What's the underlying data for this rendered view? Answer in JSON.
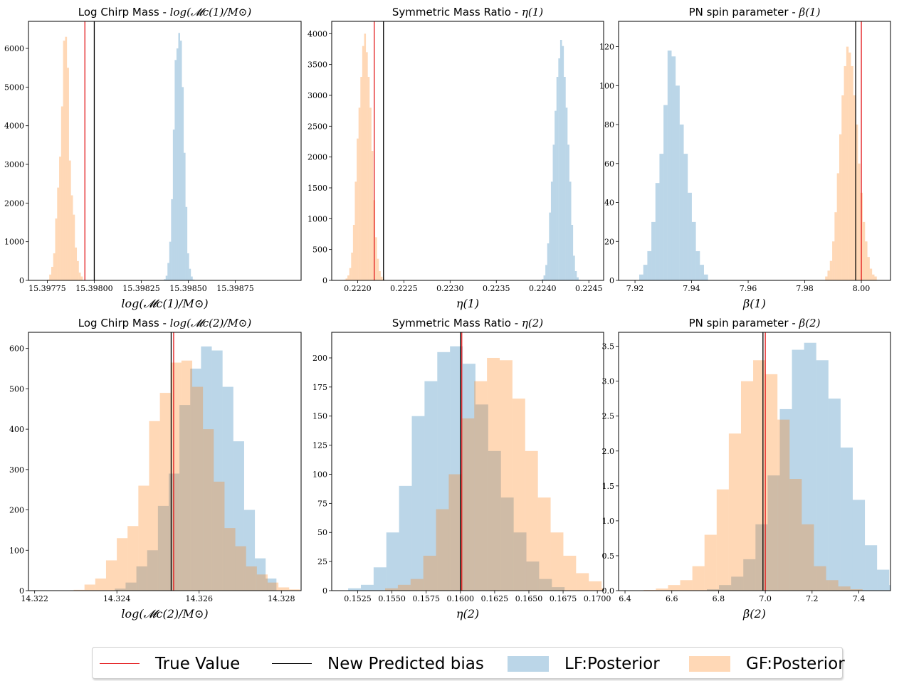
{
  "colors": {
    "true_value": "#e31a1c",
    "predicted_bias": "#000000",
    "lf_posterior": "#1f77b4",
    "gf_posterior": "#ff7f0e",
    "hist_alpha": 0.3
  },
  "legend": {
    "true_value": "True Value",
    "predicted_bias": "New Predicted bias",
    "lf_posterior": "LF:Posterior",
    "gf_posterior": "GF:Posterior"
  },
  "chart_data": [
    {
      "type": "histogram",
      "title_text": "Log Chirp Mass - ",
      "title_math": "log(𝓜c(1)/M⊙)",
      "xlabel": "log(𝓜c(1)/M⊙)",
      "xlim": [
        15.39765,
        15.3991
      ],
      "ylim": [
        0,
        6700
      ],
      "xticks": [
        15.39775,
        15.398,
        15.39825,
        15.3985,
        15.39875
      ],
      "xtick_labels": [
        "15.39775",
        "15.39800",
        "15.39825",
        "15.39850",
        "15.39875"
      ],
      "yticks": [
        0,
        1000,
        2000,
        3000,
        4000,
        5000,
        6000
      ],
      "true_value": 15.39795,
      "predicted_bias": 15.398,
      "gf": {
        "start": 15.39775,
        "width": 1.05e-05,
        "counts": [
          20,
          150,
          350,
          700,
          1600,
          2400,
          3200,
          4500,
          6200,
          6300,
          5500,
          3100,
          2200,
          1700,
          850,
          500,
          200,
          100
        ]
      },
      "lf": {
        "start": 15.39837,
        "width": 9.6e-06,
        "counts": [
          30,
          120,
          450,
          1000,
          2100,
          3900,
          5700,
          6000,
          6400,
          6200,
          5000,
          3300,
          1900,
          700,
          300,
          100,
          20
        ]
      }
    },
    {
      "type": "histogram",
      "title_text": "Symmetric Mass Ratio - ",
      "title_math": "η(1)",
      "xlabel": "η(1)",
      "xlim": [
        0.22172,
        0.22466
      ],
      "ylim": [
        0,
        4200
      ],
      "xticks": [
        0.222,
        0.2225,
        0.223,
        0.2235,
        0.224,
        0.2245
      ],
      "xtick_labels": [
        "0.2220",
        "0.2225",
        "0.2230",
        "0.2235",
        "0.2240",
        "0.2245"
      ],
      "yticks": [
        0,
        500,
        1000,
        1500,
        2000,
        2500,
        3000,
        3500,
        4000
      ],
      "true_value": 0.22218,
      "predicted_bias": 0.22228,
      "gf": {
        "start": 0.22185,
        "width": 2e-05,
        "counts": [
          10,
          30,
          80,
          200,
          450,
          900,
          1600,
          2300,
          2800,
          3300,
          3800,
          4000,
          3700,
          3300,
          2800,
          2100,
          1300,
          700,
          350,
          150,
          60,
          20
        ]
      },
      "lf": {
        "start": 0.22399,
        "width": 2e-05,
        "counts": [
          20,
          80,
          250,
          600,
          1100,
          1600,
          2200,
          2750,
          3300,
          3600,
          3900,
          3800,
          3300,
          2800,
          2200,
          1600,
          900,
          400,
          150,
          50,
          10
        ]
      }
    },
    {
      "type": "histogram",
      "title_text": "PN spin parameter - ",
      "title_math": "β(1)",
      "xlabel": "β(1)",
      "xlim": [
        7.9142,
        8.0103
      ],
      "ylim": [
        0,
        133
      ],
      "xticks": [
        7.92,
        7.94,
        7.96,
        7.98,
        8.0
      ],
      "xtick_labels": [
        "7.92",
        "7.94",
        "7.96",
        "7.98",
        "8.00"
      ],
      "yticks": [
        0,
        20,
        40,
        60,
        80,
        100,
        120
      ],
      "true_value": 8.0,
      "predicted_bias": 7.998,
      "lf": {
        "start": 7.9215,
        "width": 0.00143,
        "counts": [
          3,
          8,
          15,
          30,
          50,
          65,
          90,
          118,
          115,
          100,
          80,
          65,
          45,
          30,
          15,
          8,
          3
        ]
      },
      "gf": {
        "start": 7.9872,
        "width": 0.00083,
        "counts": [
          2,
          5,
          10,
          20,
          35,
          55,
          75,
          95,
          110,
          120,
          117,
          110,
          95,
          80,
          60,
          45,
          30,
          20,
          12,
          6,
          3,
          2
        ]
      }
    },
    {
      "type": "histogram",
      "title_text": "Log Chirp Mass - ",
      "title_math": "log(𝓜c(2)/M⊙)",
      "xlabel": "log(𝓜c(2)/M⊙)",
      "xlim": [
        14.32185,
        14.32848
      ],
      "ylim": [
        0,
        640
      ],
      "xticks": [
        14.322,
        14.324,
        14.326,
        14.328
      ],
      "xtick_labels": [
        "14.322",
        "14.324",
        "14.326",
        "14.328"
      ],
      "yticks": [
        0,
        100,
        200,
        300,
        400,
        500,
        600
      ],
      "true_value": 14.32538,
      "predicted_bias": 14.32532,
      "gf": {
        "start": 14.32295,
        "width": 0.000262,
        "counts": [
          2,
          15,
          30,
          75,
          130,
          160,
          260,
          420,
          490,
          565,
          570,
          505,
          400,
          270,
          155,
          110,
          60,
          40,
          20,
          8,
          3
        ]
      },
      "lf": {
        "start": 14.32395,
        "width": 0.000262,
        "counts": [
          5,
          20,
          60,
          100,
          210,
          290,
          460,
          550,
          605,
          595,
          505,
          370,
          200,
          80,
          30
        ]
      }
    },
    {
      "type": "histogram",
      "title_text": "Symmetric Mass Ratio - ",
      "title_math": "η(2)",
      "xlabel": "η(2)",
      "xlim": [
        0.1506,
        0.17046
      ],
      "ylim": [
        0,
        222
      ],
      "xticks": [
        0.1525,
        0.155,
        0.1575,
        0.16,
        0.1625,
        0.165,
        0.1675,
        0.17
      ],
      "xtick_labels": [
        "0.1525",
        "0.1550",
        "0.1575",
        "0.1600",
        "0.1625",
        "0.1650",
        "0.1675",
        "0.1700"
      ],
      "yticks": [
        0,
        25,
        50,
        75,
        100,
        125,
        150,
        175,
        200
      ],
      "true_value": 0.1601,
      "predicted_bias": 0.16,
      "lf": {
        "start": 0.1518,
        "width": 0.00093,
        "counts": [
          2,
          5,
          20,
          50,
          90,
          150,
          180,
          205,
          210,
          195,
          160,
          120,
          80,
          50,
          25,
          10,
          3
        ]
      },
      "gf": {
        "start": 0.1545,
        "width": 0.00093,
        "counts": [
          2,
          5,
          10,
          30,
          70,
          100,
          148,
          180,
          200,
          198,
          165,
          120,
          80,
          50,
          30,
          15,
          8,
          2
        ]
      }
    },
    {
      "type": "histogram",
      "title_text": "PN spin parameter - ",
      "title_math": "β(2)",
      "xlabel": "β(2)",
      "xlim": [
        6.3725,
        7.5354
      ],
      "ylim": [
        0,
        3.7
      ],
      "xticks": [
        6.4,
        6.6,
        6.8,
        7.0,
        7.2,
        7.4
      ],
      "xtick_labels": [
        "6.4",
        "6.6",
        "6.8",
        "7.0",
        "7.2",
        "7.4"
      ],
      "yticks": [
        0,
        0.5,
        1.0,
        1.5,
        2.0,
        2.5,
        3.0,
        3.5
      ],
      "ytick_labels": [
        "0.0",
        "0.5",
        "1.0",
        "1.5",
        "2.0",
        "2.5",
        "3.0",
        "3.5"
      ],
      "true_value": 7.0,
      "predicted_bias": 6.99,
      "gf": {
        "start": 6.48,
        "width": 0.052,
        "counts": [
          0.01,
          0.03,
          0.08,
          0.15,
          0.35,
          0.8,
          1.45,
          2.25,
          3.0,
          3.3,
          3.1,
          2.45,
          1.6,
          0.95,
          0.35,
          0.15,
          0.06,
          0.02
        ]
      },
      "lf": {
        "start": 6.75,
        "width": 0.052,
        "counts": [
          0.02,
          0.08,
          0.2,
          0.45,
          0.95,
          1.65,
          2.6,
          3.45,
          3.55,
          3.3,
          2.75,
          2.05,
          1.3,
          0.65,
          0.3,
          0.08
        ]
      }
    }
  ]
}
